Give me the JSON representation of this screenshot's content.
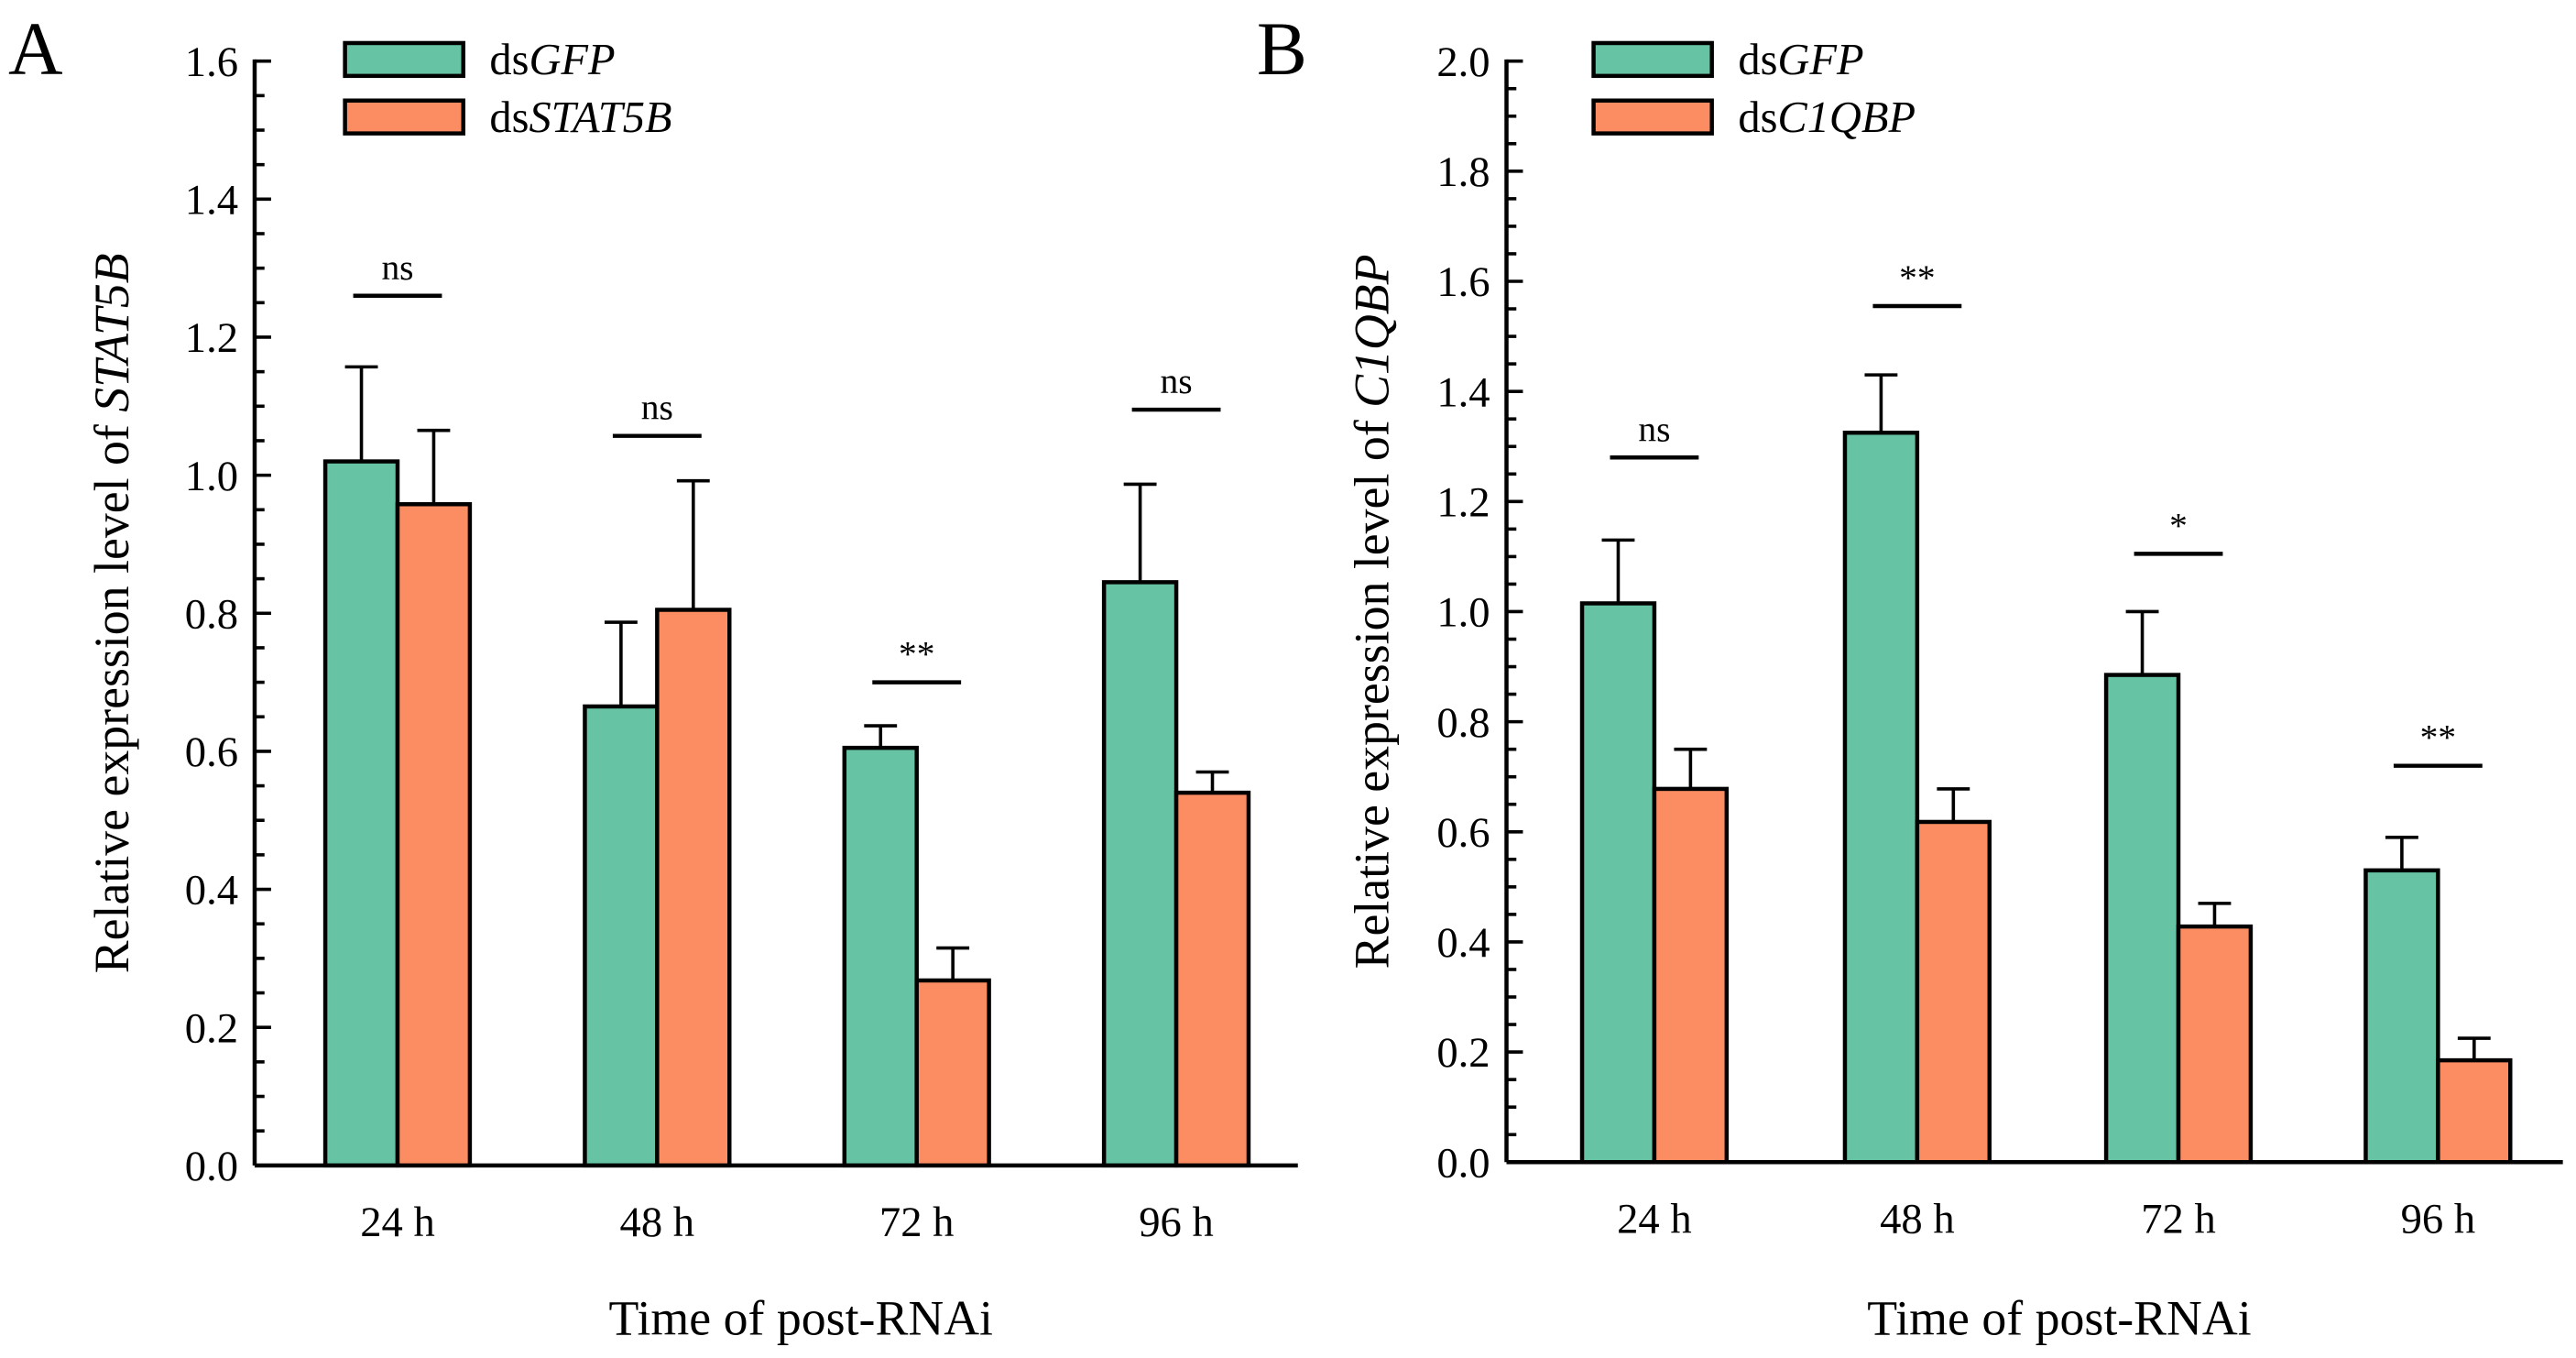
{
  "colors": {
    "gfp": "#66c3a4",
    "kd": "#fc8d62",
    "stroke": "#000000"
  },
  "chart_data": [
    {
      "type": "bar",
      "panel_label": "A",
      "categories": [
        "24 h",
        "48 h",
        "72 h",
        "96 h"
      ],
      "xlabel": "Time of post-RNAi",
      "ylabel_prefix": "Relative expression  level of ",
      "ylabel_gene": "STAT5B",
      "ylim": [
        0,
        1.6
      ],
      "yticks": [
        "0.0",
        "0.2",
        "0.4",
        "0.6",
        "0.8",
        "1.0",
        "1.2",
        "1.4",
        "1.6"
      ],
      "legend_position": "top-left",
      "series": [
        {
          "name_prefix": "ds",
          "name_gene": "GFP",
          "values": [
            1.02,
            0.665,
            0.605,
            0.845
          ],
          "error_top": [
            1.157,
            0.787,
            0.637,
            0.987
          ]
        },
        {
          "name_prefix": "ds",
          "name_gene": "STAT5B",
          "values": [
            0.958,
            0.805,
            0.268,
            0.54
          ],
          "error_top": [
            1.065,
            0.992,
            0.315,
            0.57
          ]
        }
      ],
      "significance": [
        {
          "label": "ns",
          "y": 1.26
        },
        {
          "label": "ns",
          "y": 1.057
        },
        {
          "label": "**",
          "y": 0.7
        },
        {
          "label": "ns",
          "y": 1.095
        }
      ]
    },
    {
      "type": "bar",
      "panel_label": "B",
      "categories": [
        "24 h",
        "48 h",
        "72 h",
        "96 h"
      ],
      "xlabel": "Time of post-RNAi",
      "ylabel_prefix": "Relative expression  level of ",
      "ylabel_gene": "C1QBP",
      "ylim": [
        0,
        2.0
      ],
      "yticks": [
        "0.0",
        "0.2",
        "0.4",
        "0.6",
        "0.8",
        "1.0",
        "1.2",
        "1.4",
        "1.6",
        "1.8",
        "2.0"
      ],
      "legend_position": "top-left",
      "series": [
        {
          "name_prefix": "ds",
          "name_gene": "GFP",
          "values": [
            1.015,
            1.325,
            0.885,
            0.53
          ],
          "error_top": [
            1.13,
            1.43,
            1.0,
            0.59
          ]
        },
        {
          "name_prefix": "ds",
          "name_gene": "C1QBP",
          "values": [
            0.678,
            0.618,
            0.428,
            0.185
          ],
          "error_top": [
            0.75,
            0.678,
            0.47,
            0.225
          ]
        }
      ],
      "significance": [
        {
          "label": "ns",
          "y": 1.28
        },
        {
          "label": "**",
          "y": 1.555
        },
        {
          "label": "*",
          "y": 1.105
        },
        {
          "label": "**",
          "y": 0.72
        }
      ]
    }
  ]
}
